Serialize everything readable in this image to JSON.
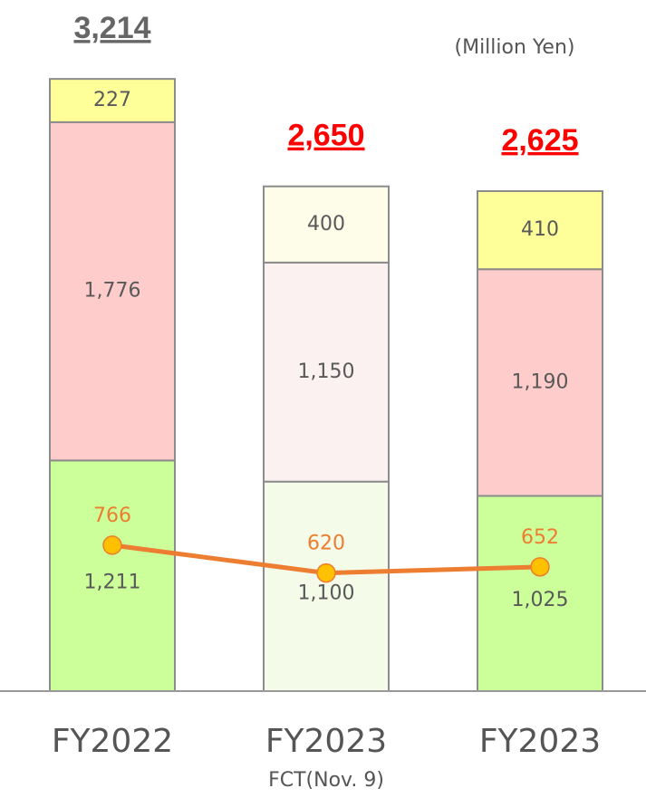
{
  "chart_data": {
    "type": "stacked_bar_line",
    "unit_label": "(Million Yen)",
    "categories": [
      "FY2022",
      "FY2023",
      "FY2023"
    ],
    "category_subtitles": [
      null,
      "FCT(Nov. 9)",
      null
    ],
    "ylim": [
      0,
      3500
    ],
    "series": [
      {
        "values": [
          1211,
          1100,
          1025
        ],
        "value_labels": [
          "1,211",
          "1,100",
          "1,025"
        ],
        "colors": [
          "#ccff99",
          "#f4fbe8",
          "#ccff99"
        ]
      },
      {
        "values": [
          1776,
          1150,
          1190
        ],
        "value_labels": [
          "1,776",
          "1,150",
          "1,190"
        ],
        "colors": [
          "#ffcccc",
          "#fbf1f1",
          "#ffcccc"
        ]
      },
      {
        "values": [
          227,
          400,
          410
        ],
        "colors": [
          "#ffff99",
          "#fdfde9",
          "#ffff99"
        ]
      }
    ],
    "line": {
      "values": [
        766,
        620,
        652
      ],
      "color": "#ed7d31",
      "marker_color": "#ffc000"
    },
    "totals": [
      3214,
      2650,
      2625
    ],
    "total_labels": [
      "3,214",
      "2,650",
      "2,625"
    ],
    "total_colors": [
      "#666666",
      "#ff0000",
      "#ff0000"
    ]
  }
}
